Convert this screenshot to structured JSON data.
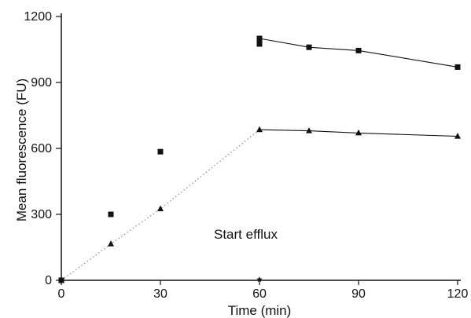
{
  "chart_data": {
    "type": "scatter",
    "title": "",
    "xlabel": "Time (min)",
    "ylabel": "Mean fluorescence (FU)",
    "xlim": [
      0,
      120
    ],
    "ylim": [
      0,
      1200
    ],
    "xticks": [
      0,
      30,
      60,
      90,
      120
    ],
    "yticks": [
      0,
      300,
      600,
      900,
      1200
    ],
    "grid": false,
    "annotations": [
      {
        "text": "Start efflux",
        "x": 60,
        "y": 0,
        "marker": "star"
      }
    ],
    "series": [
      {
        "marker": "square",
        "color": "#111111",
        "points": [
          [
            0,
            0
          ],
          [
            15,
            300
          ],
          [
            30,
            585
          ],
          [
            60,
            1100
          ],
          [
            60,
            1075
          ],
          [
            75,
            1060
          ],
          [
            90,
            1045
          ],
          [
            120,
            970
          ]
        ],
        "uptake_line": {
          "style": "none"
        },
        "efflux_line": {
          "style": "solid",
          "points": [
            [
              60,
              1100
            ],
            [
              75,
              1060
            ],
            [
              90,
              1045
            ],
            [
              120,
              970
            ]
          ]
        }
      },
      {
        "marker": "triangle",
        "color": "#111111",
        "points": [
          [
            0,
            0
          ],
          [
            15,
            165
          ],
          [
            30,
            325
          ],
          [
            60,
            685
          ],
          [
            75,
            680
          ],
          [
            90,
            670
          ],
          [
            120,
            655
          ]
        ],
        "uptake_line": {
          "style": "dotted",
          "points": [
            [
              0,
              0
            ],
            [
              15,
              165
            ],
            [
              30,
              325
            ],
            [
              60,
              685
            ]
          ]
        },
        "efflux_line": {
          "style": "solid",
          "points": [
            [
              60,
              685
            ],
            [
              75,
              680
            ],
            [
              90,
              670
            ],
            [
              120,
              655
            ]
          ]
        }
      }
    ]
  }
}
